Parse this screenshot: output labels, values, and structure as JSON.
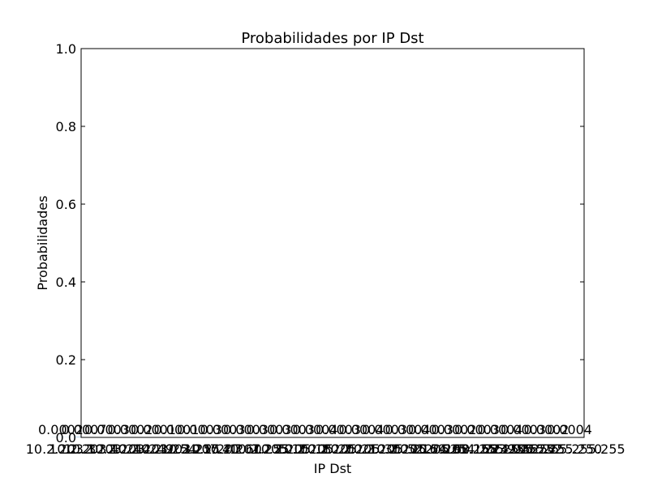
{
  "chart_data": {
    "type": "bar",
    "title": "Probabilidades por IP Dst",
    "xlabel": "IP Dst",
    "ylabel": "Probabilidades",
    "ylim": [
      0,
      1
    ],
    "yticks": [
      "0.0",
      "0.2",
      "0.4",
      "0.6",
      "0.8",
      "1.0"
    ],
    "ytick_values": [
      0,
      0.2,
      0.4,
      0.6,
      0.8,
      1.0
    ],
    "categories": [
      "10.2.203.3",
      "10.2.203.4",
      "10.2.203.244",
      "10.2.203.249",
      "10.2.203.254",
      "10.2.203.255",
      "10.2.207.40",
      "10.2.207.60",
      "10.2.207.255",
      "10.2.205.10",
      "10.2.205.18",
      "10.2.205.20",
      "10.2.205.21",
      "10.2.205.30",
      "10.2.205.52",
      "10.2.205.54",
      "10.2.205.60",
      "10.2.205.255",
      "169.254.255.255",
      "192.168.254.254",
      "224.0.0.252",
      "239.255.255.250",
      "255.255.255.255"
    ],
    "values": [
      0.0002,
      0.0007,
      0.0003,
      0.0002,
      0.0001,
      0.0001,
      0.0003,
      0.0003,
      0.0003,
      0.0003,
      0.0003,
      0.0004,
      0.0003,
      0.0004,
      0.0003,
      0.0004,
      0.0003,
      0.0002,
      0.0003,
      0.0004,
      0.0003,
      0.0002,
      0.0004
    ],
    "value_labels": [
      "0.0002",
      "0.0007",
      "0.0003",
      "0.0002",
      "0.0001",
      "0.0001",
      "0.0003",
      "0.0003",
      "0.0003",
      "0.0003",
      "0.0003",
      "0.0004",
      "0.0003",
      "0.0004",
      "0.0003",
      "0.0004",
      "0.0003",
      "0.0002",
      "0.0003",
      "0.0004",
      "0.0003",
      "0.0002",
      "0.0004"
    ],
    "bar_color": "#1f77b4",
    "grid": false,
    "legend": "none"
  }
}
